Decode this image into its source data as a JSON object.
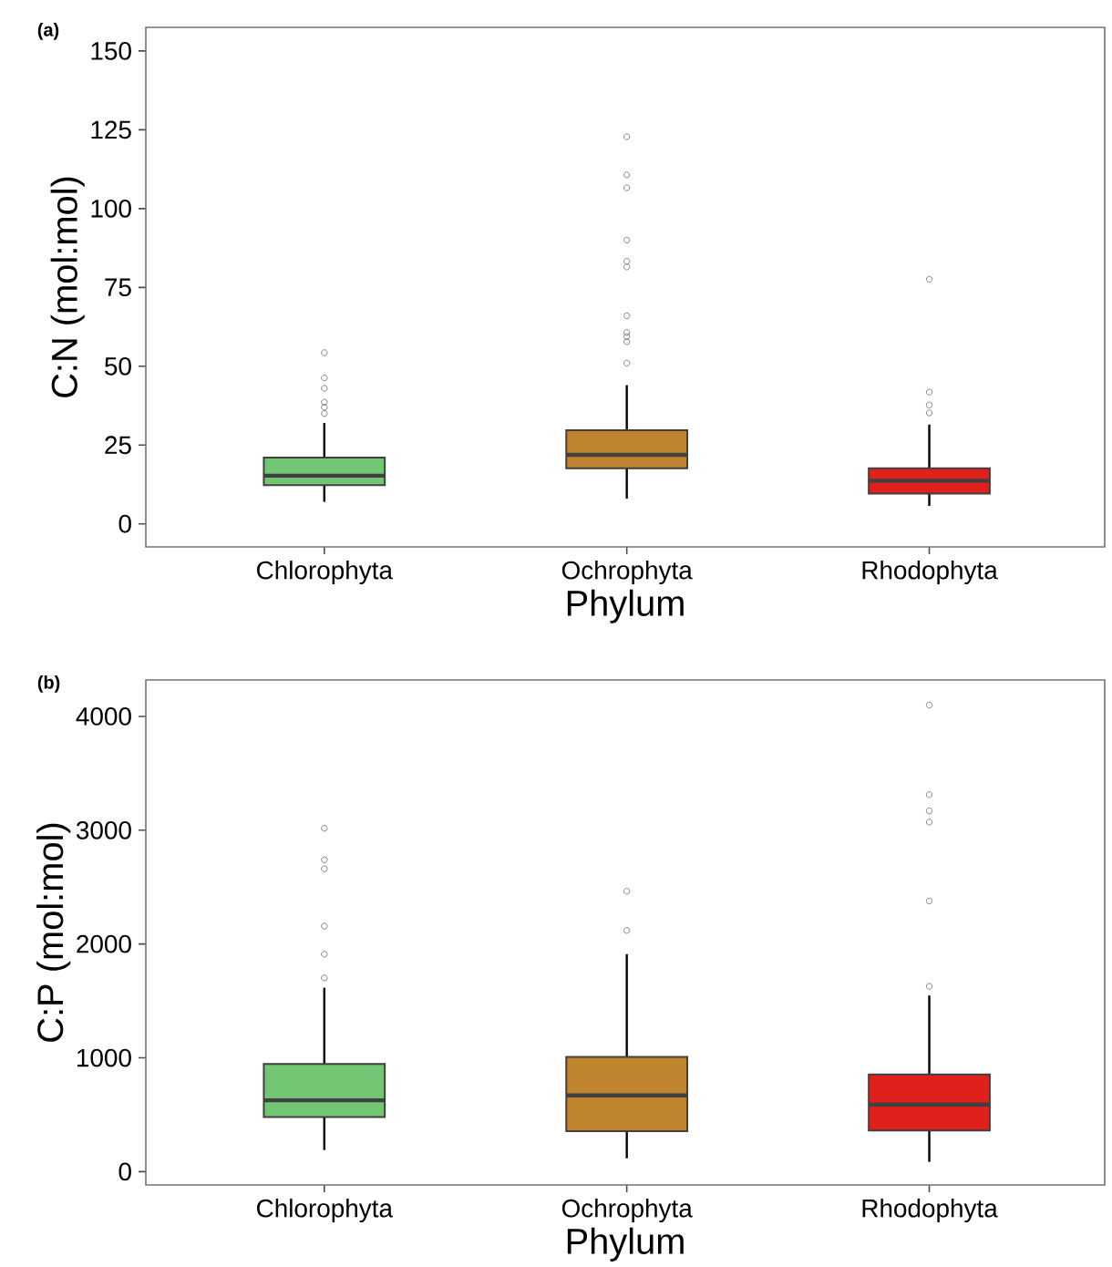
{
  "chart_data": [
    {
      "type": "box",
      "title": "(a)",
      "xlabel": "Phylum",
      "ylabel": "C:N (mol:mol)",
      "categories": [
        "Chlorophyta",
        "Ochrophyta",
        "Rhodophyta"
      ],
      "colors": [
        "#72c572",
        "#c0832e",
        "#e0201b"
      ],
      "boxes": [
        {
          "low": 7,
          "q1": 12.3,
          "median": 15.3,
          "q3": 21,
          "high": 32,
          "outliers": [
            54.3,
            46.3,
            43,
            38.6,
            37,
            35
          ]
        },
        {
          "low": 8,
          "q1": 17.6,
          "median": 21.9,
          "q3": 29.7,
          "high": 44,
          "outliers": [
            122.8,
            110.7,
            106.6,
            90,
            83.3,
            81.5,
            66,
            60.7,
            59.4,
            57.8,
            51
          ]
        },
        {
          "low": 5.7,
          "q1": 9.6,
          "median": 13.7,
          "q3": 17.6,
          "high": 31.5,
          "outliers": [
            77.6,
            41.8,
            37.7,
            35.2
          ]
        }
      ],
      "ylim": [
        -7.3,
        157.5
      ],
      "yticks": [
        0,
        25,
        50,
        75,
        100,
        125,
        150
      ]
    },
    {
      "type": "box",
      "title": "(b)",
      "xlabel": "Phylum",
      "ylabel": "C:P (mol:mol)",
      "categories": [
        "Chlorophyta",
        "Ochrophyta",
        "Rhodophyta"
      ],
      "colors": [
        "#72c572",
        "#c0832e",
        "#e0201b"
      ],
      "boxes": [
        {
          "low": 190,
          "q1": 479,
          "median": 627,
          "q3": 946,
          "high": 1616,
          "outliers": [
            3017,
            2740,
            2660,
            2157,
            1911,
            1702
          ]
        },
        {
          "low": 117,
          "q1": 356,
          "median": 670,
          "q3": 1008,
          "high": 1911,
          "outliers": [
            2464,
            2120
          ]
        },
        {
          "low": 86,
          "q1": 362,
          "median": 590,
          "q3": 854,
          "high": 1548,
          "outliers": [
            4100,
            3312,
            3170,
            3072,
            2378,
            1628
          ]
        }
      ],
      "ylim": [
        -117,
        4320
      ],
      "yticks": [
        0,
        1000,
        2000,
        3000,
        4000
      ]
    }
  ]
}
